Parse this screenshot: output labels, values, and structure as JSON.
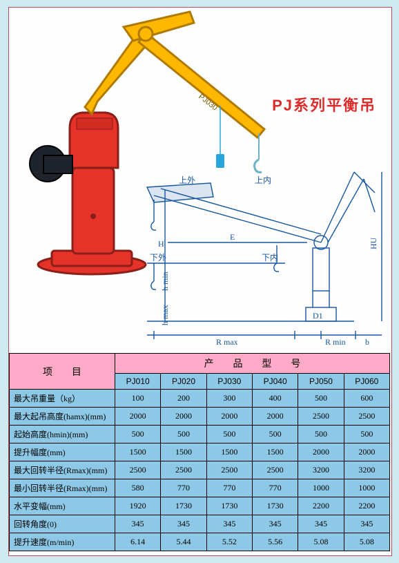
{
  "title": "PJ系列平衡吊",
  "page_bg": "#d0eaf2",
  "panel_bg": "#fefefe",
  "panel_border": "#c14a56",
  "title_color": "#dc2b2b",
  "crane": {
    "arm_color": "#ffb800",
    "arm_stroke": "#b07a00",
    "body_color": "#e5332a",
    "body_stroke": "#8a1e18",
    "motor_color": "#1f232b",
    "hook_color": "#6db1c7",
    "label_on_arm": "PJ030"
  },
  "schematic": {
    "line_color": "#1556a0",
    "labels": {
      "top_outer": "上外",
      "top_inner": "上内",
      "bottom_outer": "下外",
      "bottom_inner": "下内",
      "H": "H",
      "HU": "HU",
      "E": "E",
      "hmin": "h min",
      "hmax": "h max",
      "Rmax": "R max",
      "Rmin": "R min",
      "b": "b",
      "D1": "D1"
    }
  },
  "table": {
    "header_bg": "#ffaac8",
    "body_bg": "#8dc9e6",
    "border_color": "#000000",
    "col1_header": "项  目",
    "col2_header": "产  品  型  号",
    "model_columns": [
      "PJ010",
      "PJ020",
      "PJ030",
      "PJ040",
      "PJ050",
      "PJ060"
    ],
    "rows": [
      {
        "label": "最大吊重量（kg）",
        "v": [
          "100",
          "200",
          "300",
          "400",
          "500",
          "600"
        ]
      },
      {
        "label": "最大起吊高度(hamx)(mm)",
        "v": [
          "2000",
          "2000",
          "2000",
          "2000",
          "2500",
          "2500"
        ]
      },
      {
        "label": "起始高度(hmin)(mm)",
        "v": [
          "500",
          "500",
          "500",
          "500",
          "500",
          "500"
        ]
      },
      {
        "label": "提升幅度(mm)",
        "v": [
          "1500",
          "1500",
          "1500",
          "1500",
          "2000",
          "2000"
        ]
      },
      {
        "label": "最大回转半径(Rmax)(mm)",
        "v": [
          "2500",
          "2500",
          "2500",
          "2500",
          "3200",
          "3200"
        ]
      },
      {
        "label": "最小回转半径(Rmax)(mm)",
        "v": [
          "580",
          "770",
          "770",
          "770",
          "1000",
          "1000"
        ]
      },
      {
        "label": "水平变幅(mm)",
        "v": [
          "1920",
          "1730",
          "1730",
          "1730",
          "2200",
          "2200"
        ]
      },
      {
        "label": "回转角度(0)",
        "v": [
          "345",
          "345",
          "345",
          "345",
          "345",
          "345"
        ]
      },
      {
        "label": "提升速度(m/min)",
        "v": [
          "6.14",
          "5.44",
          "5.52",
          "5.56",
          "5.08",
          "5.08"
        ]
      }
    ]
  }
}
